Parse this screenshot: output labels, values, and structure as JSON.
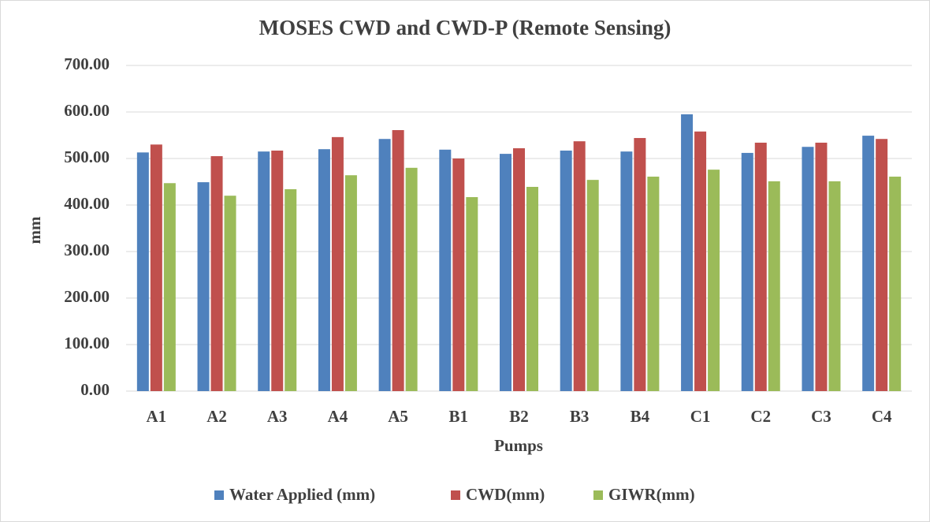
{
  "chart_data": {
    "type": "bar",
    "title": "MOSES CWD and CWD-P (Remote Sensing)",
    "x_label": "Pumps",
    "y_label": "mm",
    "categories": [
      "A1",
      "A2",
      "A3",
      "A4",
      "A5",
      "B1",
      "B2",
      "B3",
      "B4",
      "C1",
      "C2",
      "C3",
      "C4"
    ],
    "series": [
      {
        "name": "Water Applied (mm)",
        "color": "#4f81bd",
        "values": [
          513,
          449,
          515,
          520,
          542,
          519,
          510,
          517,
          515,
          595,
          512,
          525,
          549
        ]
      },
      {
        "name": "CWD(mm)",
        "color": "#c0504d",
        "values": [
          530,
          505,
          517,
          546,
          561,
          500,
          522,
          537,
          544,
          558,
          534,
          534,
          542
        ]
      },
      {
        "name": "GIWR(mm)",
        "color": "#9bbb59",
        "values": [
          447,
          420,
          434,
          464,
          480,
          417,
          439,
          454,
          461,
          476,
          451,
          451,
          461
        ]
      }
    ],
    "ylim": [
      0,
      700
    ],
    "yticks": [
      {
        "value": 0,
        "label": "0.00"
      },
      {
        "value": 100,
        "label": "100.00"
      },
      {
        "value": 200,
        "label": "200.00"
      },
      {
        "value": 300,
        "label": "300.00"
      },
      {
        "value": 400,
        "label": "400.00"
      },
      {
        "value": 500,
        "label": "500.00"
      },
      {
        "value": 600,
        "label": "600.00"
      },
      {
        "value": 700,
        "label": "700.00"
      }
    ],
    "grid": true,
    "legend": "bottom"
  }
}
